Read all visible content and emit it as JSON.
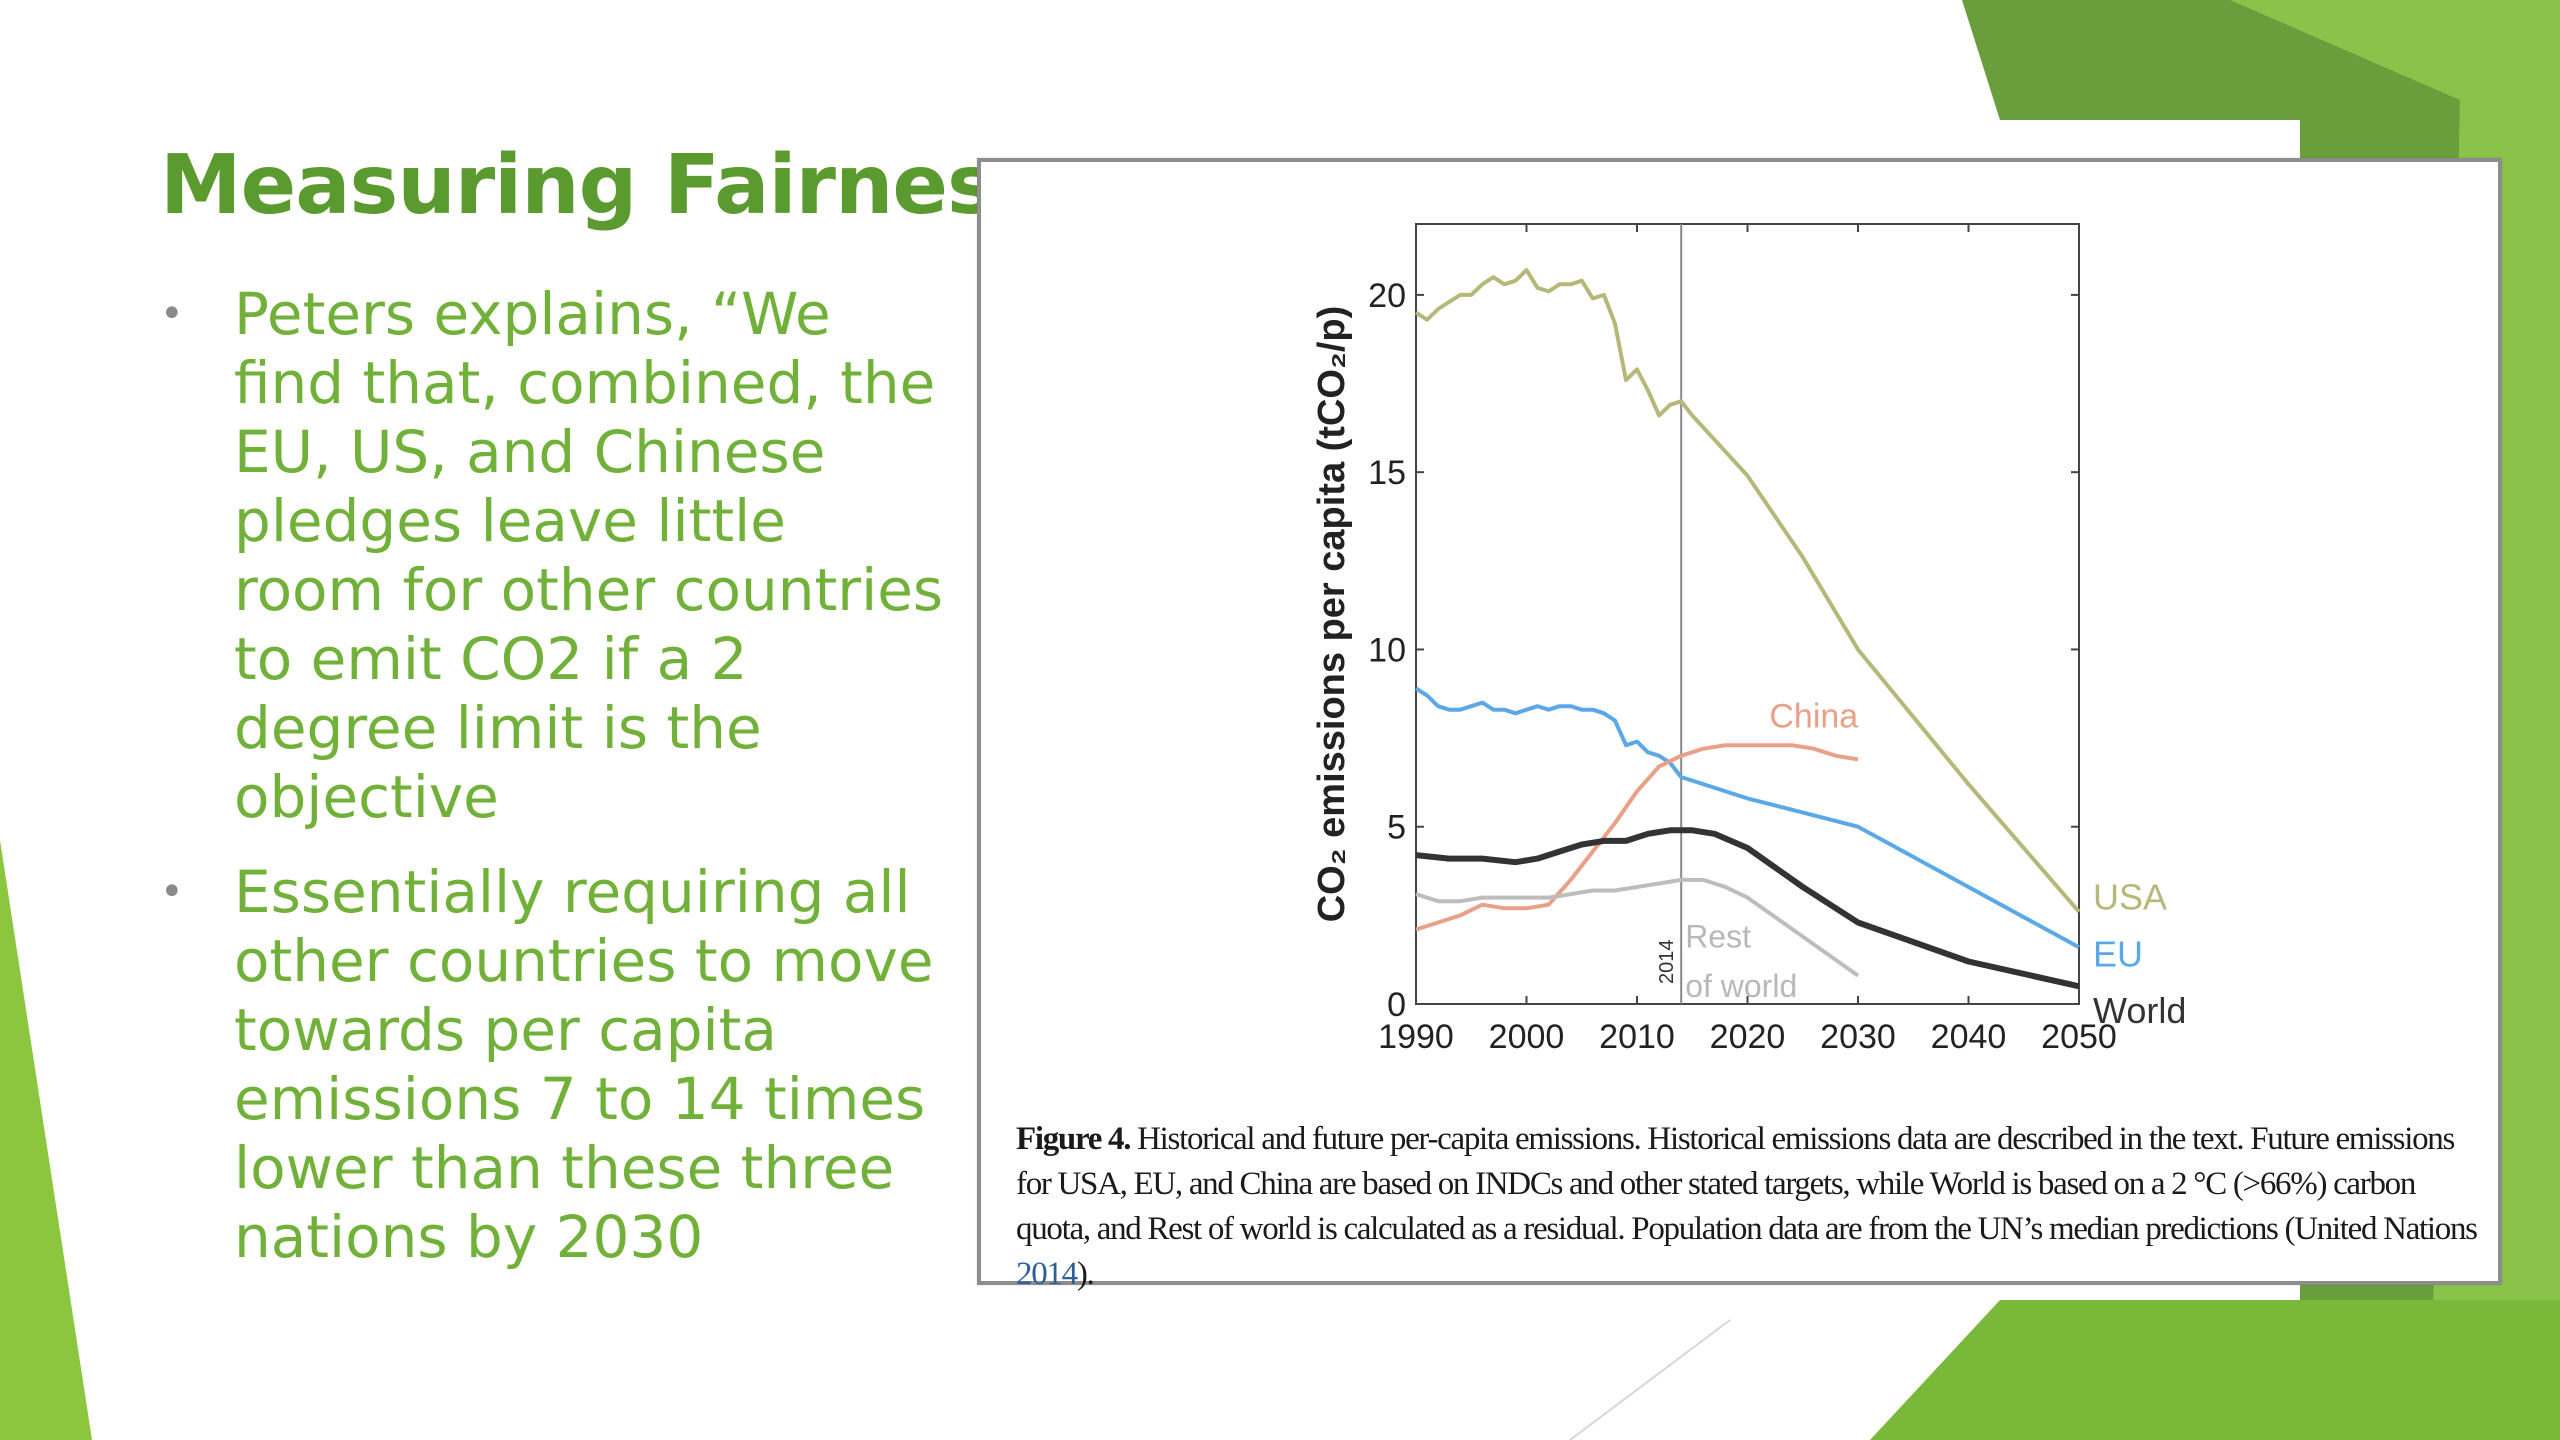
{
  "slide": {
    "title": "Measuring Fairness",
    "bullets": [
      "Peters explains, “We find that, combined, the EU, US, and Chinese pledges leave little room for other countries to emit CO2 if a 2 degree limit is the objective",
      "Essentially requiring all other countries to move towards per capita emissions 7 to 14 times lower than these three nations by 2030"
    ],
    "bullet_icon": "bullet-dot-icon",
    "accent_color": "#5b9a2e",
    "text_color": "#71b13a"
  },
  "figure": {
    "caption_label": "Figure 4.",
    "caption_text": "Historical and future per-capita emissions. Historical emissions data are described in the text. Future emissions for USA, EU, and China are based on INDCs and other stated targets, while World is based on a 2 °C (>66%) carbon quota, and Rest of world is calculated as a residual. Population data are from the UN’s median predictions (United Nations ",
    "caption_link": "2014",
    "caption_end": ")."
  },
  "chart_data": {
    "type": "line",
    "title": "",
    "xlabel": "",
    "ylabel": "CO₂ emissions per capita (tCO₂/p)",
    "xlim": [
      1990,
      2050
    ],
    "ylim": [
      0,
      22
    ],
    "xticks": [
      1990,
      2000,
      2010,
      2020,
      2030,
      2040,
      2050
    ],
    "yticks": [
      0,
      5,
      10,
      15,
      20
    ],
    "grid": false,
    "vline": {
      "x": 2014,
      "label": "2014"
    },
    "series": [
      {
        "name": "USA",
        "color": "#b5b878",
        "label_pos": "end",
        "points": [
          [
            1990,
            19.5
          ],
          [
            1991,
            19.3
          ],
          [
            1992,
            19.6
          ],
          [
            1993,
            19.8
          ],
          [
            1994,
            20.0
          ],
          [
            1995,
            20.0
          ],
          [
            1996,
            20.3
          ],
          [
            1997,
            20.5
          ],
          [
            1998,
            20.3
          ],
          [
            1999,
            20.4
          ],
          [
            2000,
            20.7
          ],
          [
            2001,
            20.2
          ],
          [
            2002,
            20.1
          ],
          [
            2003,
            20.3
          ],
          [
            2004,
            20.3
          ],
          [
            2005,
            20.4
          ],
          [
            2006,
            19.9
          ],
          [
            2007,
            20.0
          ],
          [
            2008,
            19.2
          ],
          [
            2009,
            17.6
          ],
          [
            2010,
            17.9
          ],
          [
            2011,
            17.3
          ],
          [
            2012,
            16.6
          ],
          [
            2013,
            16.9
          ],
          [
            2014,
            17.0
          ],
          [
            2015,
            16.6
          ],
          [
            2020,
            14.9
          ],
          [
            2025,
            12.6
          ],
          [
            2030,
            10.0
          ],
          [
            2040,
            6.2
          ],
          [
            2050,
            2.6
          ]
        ]
      },
      {
        "name": "EU",
        "color": "#5aa8e8",
        "label_pos": "end",
        "points": [
          [
            1990,
            8.9
          ],
          [
            1991,
            8.7
          ],
          [
            1992,
            8.4
          ],
          [
            1993,
            8.3
          ],
          [
            1994,
            8.3
          ],
          [
            1995,
            8.4
          ],
          [
            1996,
            8.5
          ],
          [
            1997,
            8.3
          ],
          [
            1998,
            8.3
          ],
          [
            1999,
            8.2
          ],
          [
            2000,
            8.3
          ],
          [
            2001,
            8.4
          ],
          [
            2002,
            8.3
          ],
          [
            2003,
            8.4
          ],
          [
            2004,
            8.4
          ],
          [
            2005,
            8.3
          ],
          [
            2006,
            8.3
          ],
          [
            2007,
            8.2
          ],
          [
            2008,
            8.0
          ],
          [
            2009,
            7.3
          ],
          [
            2010,
            7.4
          ],
          [
            2011,
            7.1
          ],
          [
            2012,
            7.0
          ],
          [
            2013,
            6.8
          ],
          [
            2014,
            6.4
          ],
          [
            2015,
            6.3
          ],
          [
            2020,
            5.8
          ],
          [
            2030,
            5.0
          ],
          [
            2040,
            3.3
          ],
          [
            2050,
            1.6
          ]
        ]
      },
      {
        "name": "China",
        "color": "#e8a088",
        "label_pos": "mid",
        "points": [
          [
            1990,
            2.1
          ],
          [
            1992,
            2.3
          ],
          [
            1994,
            2.5
          ],
          [
            1996,
            2.8
          ],
          [
            1998,
            2.7
          ],
          [
            2000,
            2.7
          ],
          [
            2002,
            2.8
          ],
          [
            2004,
            3.5
          ],
          [
            2006,
            4.3
          ],
          [
            2008,
            5.1
          ],
          [
            2010,
            6.0
          ],
          [
            2012,
            6.7
          ],
          [
            2014,
            7.0
          ],
          [
            2016,
            7.2
          ],
          [
            2018,
            7.3
          ],
          [
            2020,
            7.3
          ],
          [
            2022,
            7.3
          ],
          [
            2024,
            7.3
          ],
          [
            2026,
            7.2
          ],
          [
            2028,
            7.0
          ],
          [
            2030,
            6.9
          ]
        ]
      },
      {
        "name": "World",
        "color": "#333333",
        "label_pos": "end",
        "points": [
          [
            1990,
            4.2
          ],
          [
            1993,
            4.1
          ],
          [
            1996,
            4.1
          ],
          [
            1999,
            4.0
          ],
          [
            2001,
            4.1
          ],
          [
            2003,
            4.3
          ],
          [
            2005,
            4.5
          ],
          [
            2007,
            4.6
          ],
          [
            2009,
            4.6
          ],
          [
            2011,
            4.8
          ],
          [
            2013,
            4.9
          ],
          [
            2015,
            4.9
          ],
          [
            2017,
            4.8
          ],
          [
            2020,
            4.4
          ],
          [
            2025,
            3.3
          ],
          [
            2030,
            2.3
          ],
          [
            2040,
            1.2
          ],
          [
            2050,
            0.5
          ]
        ]
      },
      {
        "name": "Rest of world",
        "color": "#bdbdbd",
        "label_pos": "mid",
        "points": [
          [
            1990,
            3.1
          ],
          [
            1992,
            2.9
          ],
          [
            1994,
            2.9
          ],
          [
            1996,
            3.0
          ],
          [
            1998,
            3.0
          ],
          [
            2000,
            3.0
          ],
          [
            2002,
            3.0
          ],
          [
            2004,
            3.1
          ],
          [
            2006,
            3.2
          ],
          [
            2008,
            3.2
          ],
          [
            2010,
            3.3
          ],
          [
            2012,
            3.4
          ],
          [
            2014,
            3.5
          ],
          [
            2016,
            3.5
          ],
          [
            2018,
            3.3
          ],
          [
            2020,
            3.0
          ],
          [
            2025,
            1.9
          ],
          [
            2030,
            0.8
          ]
        ]
      }
    ]
  }
}
